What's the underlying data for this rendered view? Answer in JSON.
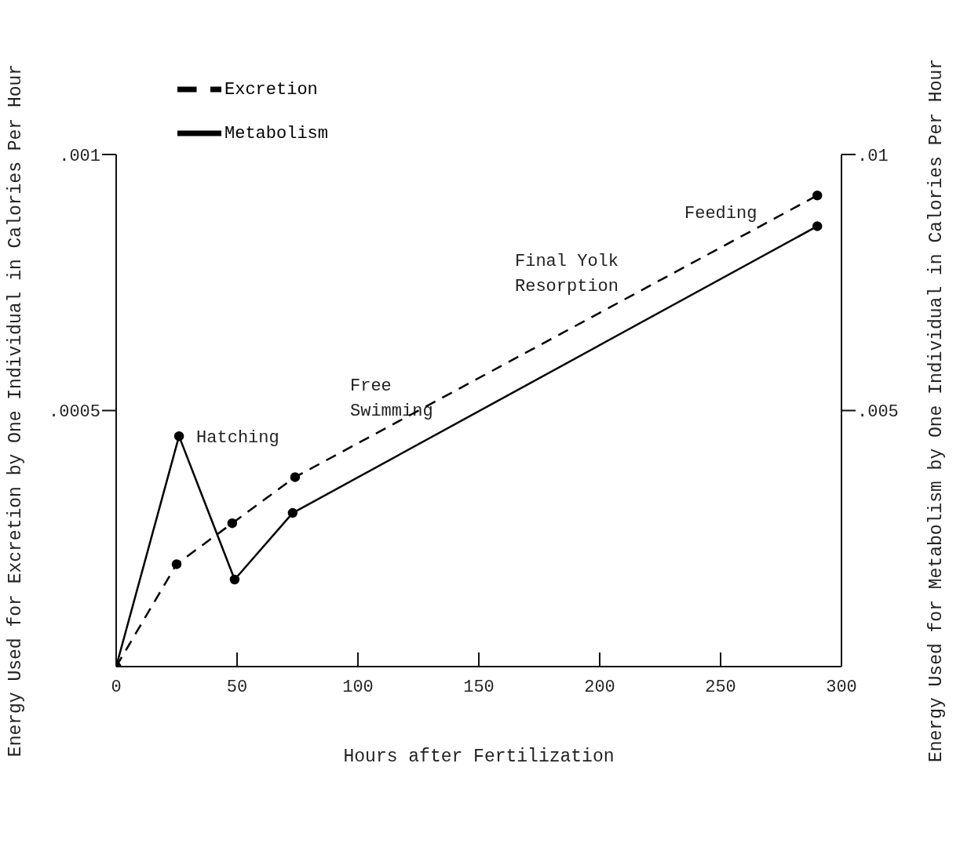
{
  "chart_data": {
    "type": "line",
    "xlabel": "Hours after Fertilization",
    "ylabel": "Energy Used for Excretion by One Individual in Calories Per Hour",
    "y2label": "Energy Used for Metabolism by One Individual in Calories Per Hour",
    "series": [
      {
        "name": "Excretion",
        "color": "#000000",
        "line_style": "dashed",
        "x": [
          0,
          25,
          48,
          74,
          290
        ],
        "values": [
          0,
          0.0002,
          0.00028,
          0.00037,
          0.00092
        ]
      },
      {
        "name": "Metabolism",
        "color": "#000000",
        "line_style": "solid",
        "axis": "y2",
        "x": [
          0,
          26,
          49,
          73,
          290
        ],
        "values": [
          0,
          0.0045,
          0.0017,
          0.003,
          0.0086
        ]
      }
    ],
    "xlim": [
      0,
      300
    ],
    "xticks": [
      0,
      50,
      100,
      150,
      200,
      250,
      300
    ],
    "ylim": [
      0,
      0.001
    ],
    "yticks": [
      {
        "value": 0.0005,
        "label": ".0005"
      },
      {
        "value": 0.001,
        "label": ".001"
      }
    ],
    "y2lim": [
      0,
      0.01
    ],
    "y2ticks": [
      {
        "value": 0.005,
        "label": ".005"
      },
      {
        "value": 0.01,
        "label": ".01"
      }
    ],
    "annotations": [
      {
        "text": "Hatching",
        "x": 26,
        "y": 0.00045
      },
      "Free\nSwimming",
      "Final Yolk\nResorption",
      "Feeding"
    ],
    "marker": "circle",
    "legend": "top left",
    "grid": false
  }
}
